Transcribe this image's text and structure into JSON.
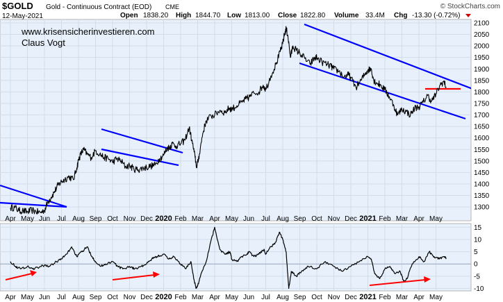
{
  "header": {
    "symbol": "$GOLD",
    "name": "Gold - Continuous Contract (EOD)",
    "exchange": "CME",
    "copyright": "© StockCharts.com",
    "date": "12-May-2021",
    "open_label": "Open",
    "open_value": "1838.20",
    "high_label": "High",
    "high_value": "1844.70",
    "low_label": "Low",
    "low_value": "1813.00",
    "close_label": "Close",
    "close_value": "1822.80",
    "volume_label": "Volume",
    "volume_value": "33.4M",
    "chg_label": "Chg",
    "chg_value": "-13.30 (-0.72%)"
  },
  "annotations": {
    "website": "www.krisensicherinvestieren.com",
    "author": "Claus Vogt"
  },
  "colors": {
    "panel_bg": "#e8f1fb",
    "frame": "#c8c8c8",
    "price_line": "#000000",
    "trendline": "#0000ff",
    "support_line": "#ff0000",
    "arrow": "#ff0000",
    "chg_red": "#cc0000"
  },
  "chart_data": [
    {
      "type": "line",
      "title": "$GOLD Gold - Continuous Contract (EOD) CME",
      "x_ticks": [
        "Apr",
        "May",
        "Jun",
        "Jul",
        "Aug",
        "Sep",
        "Oct",
        "Nov",
        "Dec",
        "2020",
        "Feb",
        "Mar",
        "Apr",
        "May",
        "Jun",
        "Jul",
        "Aug",
        "Sep",
        "Oct",
        "Nov",
        "Dec",
        "2021",
        "Feb",
        "Mar",
        "Apr",
        "May"
      ],
      "y_ticks": [
        1300,
        1350,
        1400,
        1450,
        1500,
        1550,
        1600,
        1650,
        1700,
        1750,
        1800,
        1850,
        1900,
        1950,
        2000,
        2050,
        2100
      ],
      "ylim": [
        1240,
        2115
      ],
      "grid": true,
      "series": [
        {
          "values": [
            [
              0,
              1296
            ],
            [
              0.25,
              1298
            ],
            [
              0.5,
              1284
            ],
            [
              0.75,
              1283
            ],
            [
              1,
              1278
            ],
            [
              1.25,
              1286
            ],
            [
              1.5,
              1280
            ],
            [
              1.75,
              1276
            ],
            [
              2,
              1285
            ],
            [
              2.2,
              1322
            ],
            [
              2.4,
              1343
            ],
            [
              2.6,
              1368
            ],
            [
              2.8,
              1395
            ],
            [
              3,
              1410
            ],
            [
              3.2,
              1420
            ],
            [
              3.45,
              1432
            ],
            [
              3.7,
              1418
            ],
            [
              3.9,
              1470
            ],
            [
              4,
              1505
            ],
            [
              4.15,
              1532
            ],
            [
              4.3,
              1550
            ],
            [
              4.5,
              1530
            ],
            [
              4.75,
              1515
            ],
            [
              5,
              1545
            ],
            [
              5.25,
              1530
            ],
            [
              5.5,
              1515
            ],
            [
              5.75,
              1510
            ],
            [
              6,
              1495
            ],
            [
              6.25,
              1510
            ],
            [
              6.5,
              1500
            ],
            [
              6.75,
              1475
            ],
            [
              7,
              1480
            ],
            [
              7.25,
              1465
            ],
            [
              7.5,
              1462
            ],
            [
              7.75,
              1468
            ],
            [
              8,
              1472
            ],
            [
              8.25,
              1478
            ],
            [
              8.5,
              1482
            ],
            [
              8.75,
              1510
            ],
            [
              9,
              1525
            ],
            [
              9.2,
              1555
            ],
            [
              9.35,
              1560
            ],
            [
              9.5,
              1575
            ],
            [
              9.75,
              1565
            ],
            [
              10,
              1575
            ],
            [
              10.25,
              1590
            ],
            [
              10.5,
              1645
            ],
            [
              10.7,
              1575
            ],
            [
              10.85,
              1515
            ],
            [
              10.95,
              1470
            ],
            [
              11.1,
              1530
            ],
            [
              11.3,
              1620
            ],
            [
              11.5,
              1675
            ],
            [
              11.8,
              1695
            ],
            [
              12,
              1700
            ],
            [
              12.3,
              1720
            ],
            [
              12.6,
              1710
            ],
            [
              12.85,
              1730
            ],
            [
              13,
              1725
            ],
            [
              13.3,
              1740
            ],
            [
              13.6,
              1755
            ],
            [
              13.85,
              1770
            ],
            [
              14,
              1775
            ],
            [
              14.3,
              1795
            ],
            [
              14.6,
              1800
            ],
            [
              14.85,
              1830
            ],
            [
              15,
              1810
            ],
            [
              15.3,
              1870
            ],
            [
              15.6,
              1920
            ],
            [
              15.85,
              1975
            ],
            [
              16,
              2010
            ],
            [
              16.1,
              2050
            ],
            [
              16.2,
              2075
            ],
            [
              16.3,
              2045
            ],
            [
              16.45,
              1950
            ],
            [
              16.6,
              2000
            ],
            [
              16.8,
              1980
            ],
            [
              17,
              1970
            ],
            [
              17.3,
              1945
            ],
            [
              17.6,
              1920
            ],
            [
              17.85,
              1945
            ],
            [
              18,
              1950
            ],
            [
              18.3,
              1930
            ],
            [
              18.6,
              1920
            ],
            [
              18.85,
              1910
            ],
            [
              19,
              1900
            ],
            [
              19.3,
              1890
            ],
            [
              19.6,
              1865
            ],
            [
              19.85,
              1875
            ],
            [
              20,
              1860
            ],
            [
              20.3,
              1820
            ],
            [
              20.6,
              1850
            ],
            [
              20.85,
              1880
            ],
            [
              21,
              1895
            ],
            [
              21.2,
              1900
            ],
            [
              21.35,
              1850
            ],
            [
              21.5,
              1840
            ],
            [
              21.75,
              1830
            ],
            [
              22,
              1810
            ],
            [
              22.25,
              1780
            ],
            [
              22.5,
              1745
            ],
            [
              22.75,
              1700
            ],
            [
              23,
              1725
            ],
            [
              23.25,
              1715
            ],
            [
              23.5,
              1700
            ],
            [
              23.75,
              1730
            ],
            [
              24,
              1735
            ],
            [
              24.25,
              1755
            ],
            [
              24.5,
              1785
            ],
            [
              24.75,
              1760
            ],
            [
              25,
              1790
            ],
            [
              25.25,
              1830
            ],
            [
              25.45,
              1845
            ],
            [
              25.6,
              1822
            ]
          ]
        }
      ]
    },
    {
      "type": "line",
      "x_ticks": [
        "Apr",
        "May",
        "Jun",
        "Jul",
        "Aug",
        "Sep",
        "Oct",
        "Nov",
        "Dec",
        "2020",
        "Feb",
        "Mar",
        "Apr",
        "May",
        "Jun",
        "Jul",
        "Aug",
        "Sep",
        "Oct",
        "Nov",
        "Dec",
        "2021",
        "Feb",
        "Mar",
        "Apr",
        "May"
      ],
      "y_ticks": [
        -10,
        -5,
        0,
        5,
        10,
        15
      ],
      "ylim": [
        -11,
        16.5
      ],
      "grid": true,
      "series": [
        {
          "values": [
            [
              0,
              1
            ],
            [
              0.3,
              -1
            ],
            [
              0.6,
              -2
            ],
            [
              1,
              -1
            ],
            [
              1.3,
              -2
            ],
            [
              1.6,
              -1.5
            ],
            [
              2,
              -0.5
            ],
            [
              2.3,
              -1
            ],
            [
              2.7,
              1
            ],
            [
              3,
              2
            ],
            [
              3.3,
              4
            ],
            [
              3.6,
              7
            ],
            [
              3.9,
              3
            ],
            [
              4.2,
              5
            ],
            [
              4.5,
              7
            ],
            [
              4.8,
              3
            ],
            [
              5,
              1
            ],
            [
              5.3,
              -1
            ],
            [
              5.6,
              0
            ],
            [
              6,
              1
            ],
            [
              6.3,
              -1
            ],
            [
              6.6,
              -2
            ],
            [
              7,
              -1
            ],
            [
              7.3,
              -2
            ],
            [
              7.7,
              -1
            ],
            [
              8,
              0
            ],
            [
              8.3,
              2
            ],
            [
              8.6,
              3
            ],
            [
              9,
              4
            ],
            [
              9.3,
              2
            ],
            [
              9.6,
              3
            ],
            [
              10,
              0
            ],
            [
              10.3,
              -2
            ],
            [
              10.6,
              1
            ],
            [
              10.75,
              -5
            ],
            [
              10.9,
              -10
            ],
            [
              11,
              -9
            ],
            [
              11.2,
              -4
            ],
            [
              11.5,
              1
            ],
            [
              11.8,
              10
            ],
            [
              12,
              15
            ],
            [
              12.3,
              6
            ],
            [
              12.6,
              4
            ],
            [
              12.9,
              5
            ],
            [
              13,
              2
            ],
            [
              13.3,
              1
            ],
            [
              13.6,
              3
            ],
            [
              13.9,
              4
            ],
            [
              14,
              5
            ],
            [
              14.3,
              3
            ],
            [
              14.6,
              4
            ],
            [
              14.9,
              6
            ],
            [
              15,
              4
            ],
            [
              15.3,
              7
            ],
            [
              15.6,
              9
            ],
            [
              15.8,
              13
            ],
            [
              16,
              10
            ],
            [
              16.2,
              5
            ],
            [
              16.35,
              -10
            ],
            [
              16.5,
              -3
            ],
            [
              16.8,
              -5
            ],
            [
              17.1,
              -3
            ],
            [
              17.5,
              -1
            ],
            [
              18,
              -2
            ],
            [
              18.5,
              1
            ],
            [
              19,
              -1
            ],
            [
              19.5,
              -3
            ],
            [
              20,
              -1
            ],
            [
              20.5,
              1
            ],
            [
              21,
              3
            ],
            [
              21.2,
              2
            ],
            [
              21.4,
              -4
            ],
            [
              21.7,
              -6
            ],
            [
              22,
              -2
            ],
            [
              22.3,
              -1
            ],
            [
              22.6,
              -4
            ],
            [
              22.9,
              -3
            ],
            [
              23.1,
              -7
            ],
            [
              23.3,
              -6
            ],
            [
              23.6,
              0
            ],
            [
              24,
              3
            ],
            [
              24.3,
              1
            ],
            [
              24.6,
              5
            ],
            [
              24.9,
              3
            ],
            [
              25.2,
              2
            ],
            [
              25.5,
              3
            ],
            [
              25.6,
              2
            ]
          ]
        }
      ]
    }
  ]
}
